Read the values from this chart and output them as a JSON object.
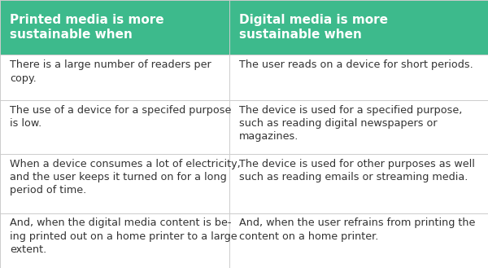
{
  "header_bg_color": "#3dba8c",
  "header_text_color": "#ffffff",
  "body_bg_color": "#ffffff",
  "body_text_color": "#333333",
  "border_color": "#cccccc",
  "col1_header": "Printed media is more\nsustainable when",
  "col2_header": "Digital media is more\nsustainable when",
  "rows": [
    [
      "There is a large number of readers per\ncopy.",
      "The user reads on a device for short periods."
    ],
    [
      "The use of a device for a specifed purpose\nis low.",
      "The device is used for a specified purpose,\nsuch as reading digital newspapers or\nmagazines."
    ],
    [
      "When a device consumes a lot of electricity,\nand the user keeps it turned on for a long\nperiod of time.",
      "The device is used for other purposes as well\nsuch as reading emails or streaming media."
    ],
    [
      "And, when the digital media content is be-\ning printed out on a home printer to a large\nextent.",
      "And, when the user refrains from printing the\ncontent on a home printer."
    ]
  ],
  "figsize": [
    6.0,
    3.29
  ],
  "dpi": 100,
  "header_fontsize": 11.0,
  "body_fontsize": 9.2,
  "col_split": 0.47
}
